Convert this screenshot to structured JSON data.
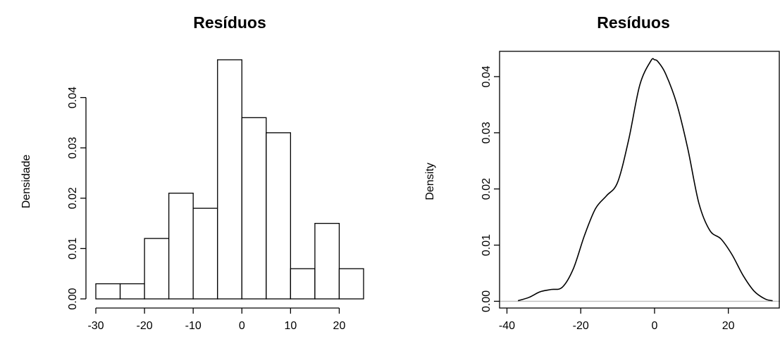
{
  "chart_data": [
    {
      "type": "bar",
      "subtype": "histogram",
      "title": "Resíduos",
      "xlabel": "",
      "ylabel": "Densidade",
      "bin_edges": [
        -30,
        -25,
        -20,
        -15,
        -10,
        -5,
        0,
        5,
        10,
        15,
        20,
        25
      ],
      "values": [
        0.003,
        0.003,
        0.012,
        0.021,
        0.018,
        0.0475,
        0.036,
        0.033,
        0.006,
        0.015,
        0.006
      ],
      "xlim": [
        -30,
        25
      ],
      "ylim": [
        0,
        0.0475
      ],
      "xticks": [
        -30,
        -20,
        -10,
        0,
        10,
        20
      ],
      "xtick_labels": [
        "-30",
        "-20",
        "-10",
        "0",
        "10",
        "20"
      ],
      "yticks": [
        0,
        0.01,
        0.02,
        0.03,
        0.04
      ],
      "ytick_labels": [
        "0.00",
        "0.01",
        "0.02",
        "0.03",
        "0.04"
      ],
      "grid": false,
      "legend": "none"
    },
    {
      "type": "line",
      "subtype": "density",
      "title": "Resíduos",
      "xlabel": "",
      "ylabel": "Density",
      "x": [
        -37,
        -34,
        -31,
        -28,
        -25,
        -22,
        -19,
        -16,
        -13,
        -10,
        -7,
        -4,
        -1,
        0,
        1,
        3,
        6,
        9,
        12,
        15,
        18,
        21,
        24,
        27,
        30,
        32
      ],
      "y": [
        0.0001,
        0.0007,
        0.0017,
        0.0021,
        0.0025,
        0.0058,
        0.0117,
        0.0165,
        0.0188,
        0.0212,
        0.0288,
        0.0385,
        0.0428,
        0.043,
        0.0426,
        0.0405,
        0.0352,
        0.0272,
        0.0175,
        0.0126,
        0.0111,
        0.0083,
        0.0046,
        0.0018,
        0.0004,
        0.0001
      ],
      "xlim": [
        -42,
        34
      ],
      "ylim": [
        -0.0012,
        0.0445
      ],
      "xticks": [
        -40,
        -20,
        0,
        20
      ],
      "xtick_labels": [
        "-40",
        "-20",
        "0",
        "20"
      ],
      "yticks": [
        0,
        0.01,
        0.02,
        0.03,
        0.04
      ],
      "ytick_labels": [
        "0.00",
        "0.01",
        "0.02",
        "0.03",
        "0.04"
      ],
      "baseline": 0,
      "baseline_color": "#bebebe",
      "box": true,
      "grid": false,
      "legend": "none"
    }
  ]
}
